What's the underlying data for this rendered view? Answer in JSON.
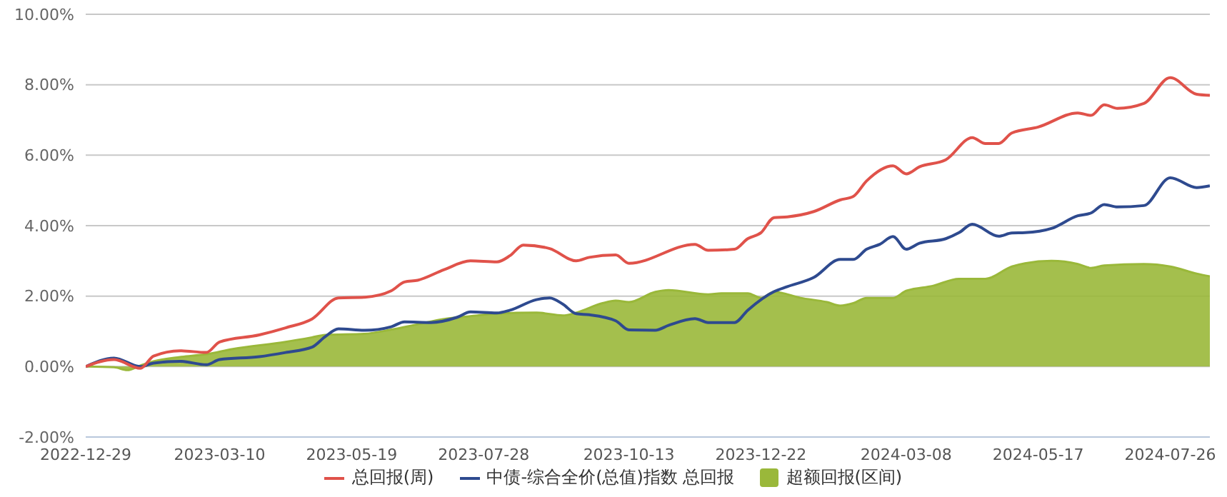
{
  "chart_data": {
    "type": "line",
    "legend": "bottom",
    "grid": "y",
    "xlim": [
      "2022-12-29",
      "2024-08-16"
    ],
    "ylim": [
      -2,
      10
    ],
    "xticks": [
      "2022-12-29",
      "2023-03-10",
      "2023-05-19",
      "2023-07-28",
      "2023-10-13",
      "2023-12-22",
      "2024-03-08",
      "2024-05-17",
      "2024-07-26"
    ],
    "yticks": [
      {
        "value": -2,
        "label": "-2.00%"
      },
      {
        "value": 0,
        "label": "0.00%"
      },
      {
        "value": 2,
        "label": "2.00%"
      },
      {
        "value": 4,
        "label": "4.00%"
      },
      {
        "value": 6,
        "label": "6.00%"
      },
      {
        "value": 8,
        "label": "8.00%"
      },
      {
        "value": 10,
        "label": "10.00%"
      }
    ],
    "series": [
      {
        "name": "总回报(周)",
        "color": "#e0524a",
        "x": [
          "2022-12-29",
          "2023-01-13",
          "2023-01-27",
          "2023-02-03",
          "2023-02-17",
          "2023-03-03",
          "2023-03-10",
          "2023-03-31",
          "2023-04-14",
          "2023-04-28",
          "2023-05-12",
          "2023-05-26",
          "2023-06-09",
          "2023-06-16",
          "2023-06-23",
          "2023-07-07",
          "2023-07-21",
          "2023-08-04",
          "2023-08-11",
          "2023-08-18",
          "2023-09-01",
          "2023-09-15",
          "2023-09-22",
          "2023-10-06",
          "2023-10-13",
          "2023-11-17",
          "2023-11-24",
          "2023-12-08",
          "2023-12-15",
          "2023-12-22",
          "2023-12-29",
          "2024-01-05",
          "2024-01-19",
          "2024-02-02",
          "2024-02-09",
          "2024-02-16",
          "2024-03-01",
          "2024-03-08",
          "2024-03-15",
          "2024-03-29",
          "2024-04-12",
          "2024-04-19",
          "2024-04-26",
          "2024-05-03",
          "2024-05-17",
          "2024-06-07",
          "2024-06-14",
          "2024-06-21",
          "2024-06-28",
          "2024-07-12",
          "2024-07-26",
          "2024-08-09",
          "2024-08-16"
        ],
        "values": [
          0,
          0.2,
          -0.05,
          0.3,
          0.45,
          0.4,
          0.7,
          0.9,
          1.1,
          1.35,
          1.95,
          1.97,
          2.15,
          2.4,
          2.45,
          2.75,
          3.0,
          2.97,
          3.15,
          3.45,
          3.35,
          3.0,
          3.1,
          3.17,
          2.93,
          3.47,
          3.3,
          3.33,
          3.63,
          3.8,
          4.23,
          4.25,
          4.4,
          4.73,
          4.83,
          5.27,
          5.7,
          5.47,
          5.67,
          5.87,
          6.5,
          6.33,
          6.33,
          6.63,
          6.8,
          7.2,
          7.13,
          7.43,
          7.33,
          7.47,
          8.2,
          7.73,
          7.7
        ]
      },
      {
        "name": "中债-综合全价(总值)指数 总回报",
        "color": "#2e4a8f",
        "x": [
          "2022-12-29",
          "2023-01-13",
          "2023-01-27",
          "2023-02-03",
          "2023-02-17",
          "2023-03-03",
          "2023-03-10",
          "2023-03-31",
          "2023-04-14",
          "2023-04-28",
          "2023-05-05",
          "2023-05-12",
          "2023-05-26",
          "2023-06-09",
          "2023-06-16",
          "2023-06-30",
          "2023-07-14",
          "2023-07-21",
          "2023-08-04",
          "2023-08-11",
          "2023-08-25",
          "2023-09-01",
          "2023-09-08",
          "2023-09-15",
          "2023-09-22",
          "2023-10-06",
          "2023-10-13",
          "2023-10-27",
          "2023-11-03",
          "2023-11-17",
          "2023-11-24",
          "2023-12-08",
          "2023-12-15",
          "2023-12-29",
          "2024-01-05",
          "2024-01-19",
          "2024-02-02",
          "2024-02-09",
          "2024-02-16",
          "2024-02-23",
          "2024-03-01",
          "2024-03-08",
          "2024-03-15",
          "2024-03-29",
          "2024-04-05",
          "2024-04-12",
          "2024-04-26",
          "2024-05-03",
          "2024-05-10",
          "2024-05-24",
          "2024-06-07",
          "2024-06-14",
          "2024-06-21",
          "2024-06-28",
          "2024-07-12",
          "2024-07-26",
          "2024-08-09",
          "2024-08-16"
        ],
        "values": [
          0,
          0.24,
          0,
          0.1,
          0.15,
          0.05,
          0.2,
          0.28,
          0.4,
          0.55,
          0.85,
          1.07,
          1.03,
          1.13,
          1.27,
          1.25,
          1.4,
          1.55,
          1.52,
          1.6,
          1.9,
          1.95,
          1.77,
          1.5,
          1.47,
          1.3,
          1.04,
          1.03,
          1.17,
          1.36,
          1.25,
          1.25,
          1.6,
          2.13,
          2.27,
          2.53,
          3.04,
          3.04,
          3.33,
          3.47,
          3.69,
          3.33,
          3.5,
          3.63,
          3.8,
          4.04,
          3.7,
          3.79,
          3.8,
          3.92,
          4.28,
          4.36,
          4.6,
          4.53,
          4.57,
          5.36,
          5.08,
          5.13
        ]
      },
      {
        "name": "超额回报(区间)",
        "type": "area",
        "color": "#9ab83a",
        "x": [
          "2022-12-29",
          "2023-01-13",
          "2023-01-20",
          "2023-01-27",
          "2023-02-03",
          "2023-02-17",
          "2023-03-03",
          "2023-03-17",
          "2023-04-14",
          "2023-04-28",
          "2023-05-05",
          "2023-05-26",
          "2023-06-09",
          "2023-06-23",
          "2023-07-07",
          "2023-07-21",
          "2023-08-04",
          "2023-08-25",
          "2023-09-08",
          "2023-09-15",
          "2023-09-29",
          "2023-10-06",
          "2023-10-13",
          "2023-10-27",
          "2023-11-03",
          "2023-11-24",
          "2023-12-01",
          "2023-12-15",
          "2023-12-22",
          "2023-12-29",
          "2024-01-12",
          "2024-01-26",
          "2024-02-02",
          "2024-02-09",
          "2024-02-16",
          "2024-03-01",
          "2024-03-08",
          "2024-03-22",
          "2024-04-05",
          "2024-04-19",
          "2024-05-03",
          "2024-05-10",
          "2024-05-24",
          "2024-06-07",
          "2024-06-14",
          "2024-06-21",
          "2024-07-12",
          "2024-07-26",
          "2024-08-09",
          "2024-08-16"
        ],
        "values": [
          0,
          -0.02,
          -0.1,
          0.03,
          0.15,
          0.27,
          0.35,
          0.5,
          0.7,
          0.83,
          0.9,
          0.93,
          1.05,
          1.2,
          1.35,
          1.43,
          1.5,
          1.53,
          1.45,
          1.53,
          1.8,
          1.87,
          1.83,
          2.12,
          2.17,
          2.05,
          2.08,
          2.08,
          1.95,
          2.12,
          1.95,
          1.83,
          1.73,
          1.8,
          1.95,
          1.95,
          2.15,
          2.29,
          2.49,
          2.49,
          2.84,
          2.93,
          3.0,
          2.91,
          2.8,
          2.87,
          2.91,
          2.84,
          2.64,
          2.56
        ]
      }
    ]
  }
}
